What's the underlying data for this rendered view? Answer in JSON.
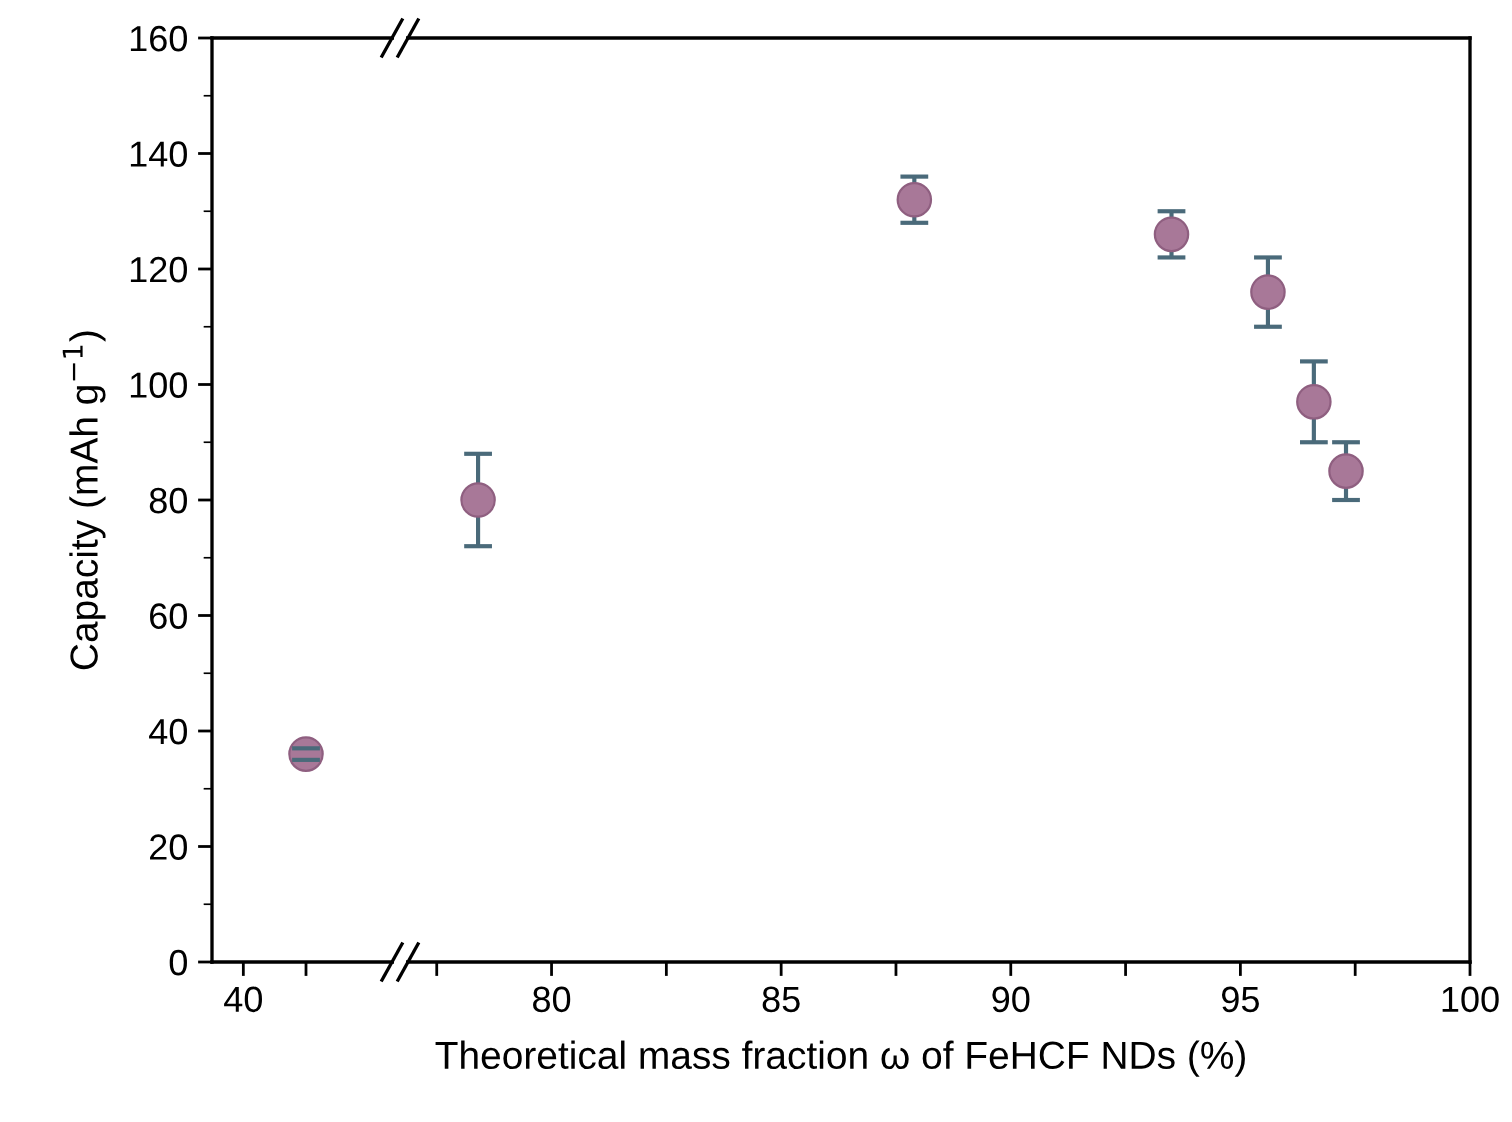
{
  "chart_data": [
    {
      "type": "scatter",
      "ylabel": "Capacity (mAh g$^{−1}$)",
      "marker": "circle",
      "grid": false,
      "categories": [
        "40",
        null,
        null
      ],
      "ylim": [
        0,
        160
      ],
      "yticks": [
        0,
        20,
        40,
        60,
        80,
        100,
        120,
        140,
        160
      ],
      "series": [
        {
          "color": "#a87898",
          "values": [
            null,
            36,
            null
          ],
          "errors": [
            null,
            [
              35,
              37
            ],
            null
          ]
        }
      ]
    },
    {
      "type": "scatter",
      "xlabel": "Theoretical mass fraction ω of FeHCF NDs (%)",
      "marker": "circle",
      "grid": false,
      "tick_labels": "x",
      "xlim": [
        76.7,
        100
      ],
      "xticks": [
        {
          "value": 77.5,
          "label": null
        },
        80,
        {
          "value": 82.5,
          "label": null
        },
        85,
        {
          "value": 87.5,
          "label": null
        },
        90,
        {
          "value": 92.5,
          "label": null
        },
        95,
        {
          "value": 97.5,
          "label": null
        },
        100
      ],
      "ylim": [
        0,
        160
      ],
      "yticks": [
        0,
        20,
        40,
        60,
        80,
        100,
        120,
        140,
        160
      ],
      "series": [
        {
          "color": "#a87898",
          "x": [
            78.4,
            87.9,
            93.5,
            95.6,
            96.6,
            97.3
          ],
          "values": [
            80,
            132,
            126,
            116,
            97,
            85
          ],
          "errors": [
            [
              72,
              88
            ],
            [
              128,
              136
            ],
            [
              122,
              130
            ],
            [
              110,
              122
            ],
            [
              90,
              104
            ],
            [
              80,
              90
            ]
          ]
        }
      ]
    }
  ]
}
